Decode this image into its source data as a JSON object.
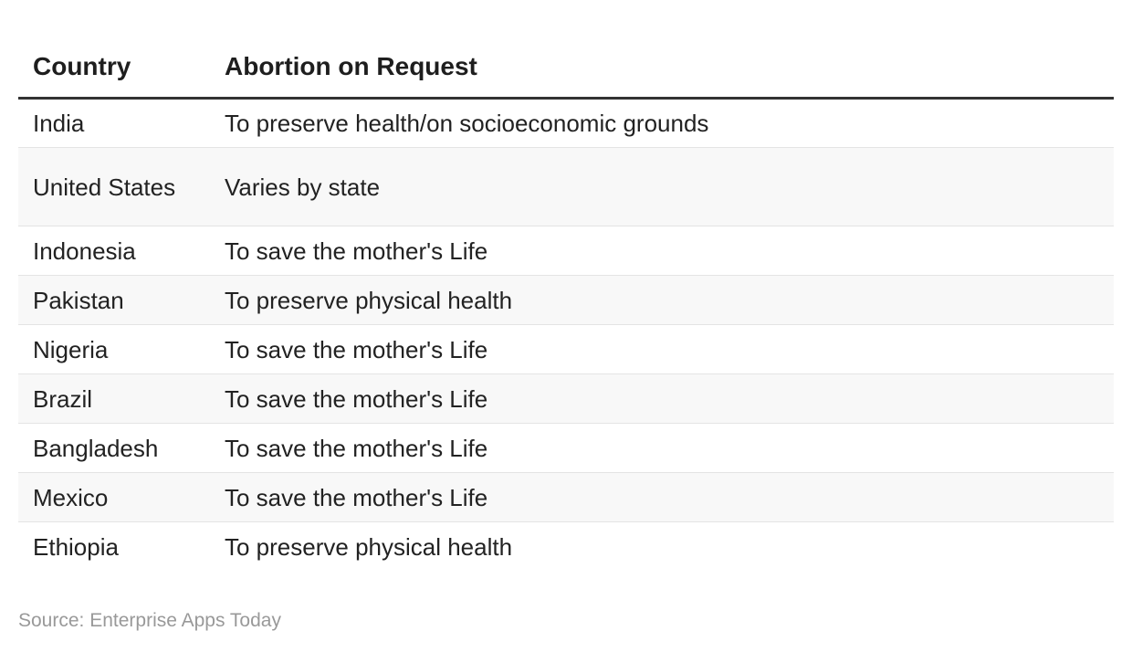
{
  "chart_data": {
    "type": "table",
    "columns": [
      "Country",
      "Abortion on Request"
    ],
    "rows": [
      [
        "India",
        "To preserve health/on socioeconomic grounds"
      ],
      [
        "United States",
        "Varies by state"
      ],
      [
        "Indonesia",
        "To save the mother's Life"
      ],
      [
        "Pakistan",
        "To preserve physical health"
      ],
      [
        "Nigeria",
        "To save the mother's Life"
      ],
      [
        "Brazil",
        "To save the mother's Life"
      ],
      [
        "Bangladesh",
        "To save the mother's Life"
      ],
      [
        "Mexico",
        "To save the mother's Life"
      ],
      [
        "Ethiopia",
        "To preserve physical health"
      ]
    ]
  },
  "source": "Source: Enterprise Apps Today"
}
